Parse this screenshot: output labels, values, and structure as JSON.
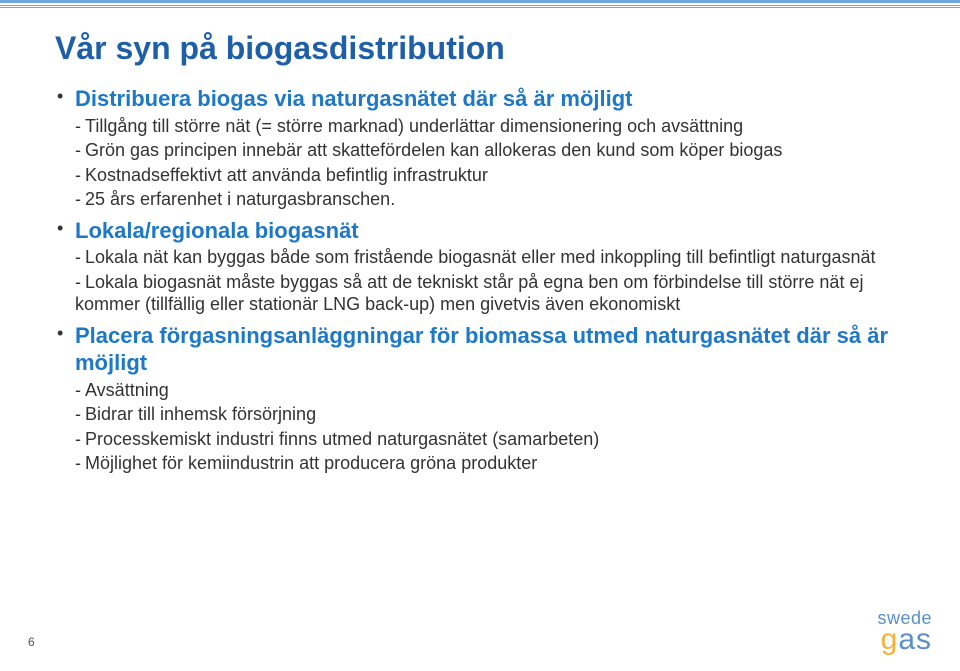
{
  "colors": {
    "accent": "#1e78c8",
    "heading": "#1e5fa8",
    "body": "#333333",
    "topbar": "#6fa8dc",
    "logo_primary": "#5b8fc7",
    "logo_accent": "#f6b23a"
  },
  "title": "Vår syn på biogasdistribution",
  "items": [
    {
      "head": "Distribuera biogas via naturgasnätet där så är möjligt",
      "subs": [
        "Tillgång till större nät (= större marknad) underlättar dimensionering och avsättning",
        "Grön gas principen innebär att skattefördelen kan allokeras den kund som köper biogas",
        "Kostnadseffektivt att använda befintlig infrastruktur",
        "25 års erfarenhet i naturgasbranschen."
      ]
    },
    {
      "head": "Lokala/regionala biogasnät",
      "subs": [
        "Lokala nät kan byggas både som fristående biogasnät eller med inkoppling till befintligt naturgasnät",
        "Lokala biogasnät måste byggas så att de tekniskt står på egna ben om förbindelse till större nät ej kommer (tillfällig eller stationär LNG back-up) men givetvis även ekonomiskt"
      ]
    },
    {
      "head": "Placera förgasningsanläggningar för biomassa utmed naturgasnätet där så är möjligt",
      "subs": [
        "Avsättning",
        "Bidrar till inhemsk försörjning",
        "Processkemiskt industri finns utmed naturgasnätet (samarbeten)",
        "Möjlighet för kemiindustrin att producera gröna produkter"
      ]
    }
  ],
  "page_number": "6",
  "logo": {
    "line1": "swede",
    "line2_g": "g",
    "line2_as": "as"
  }
}
